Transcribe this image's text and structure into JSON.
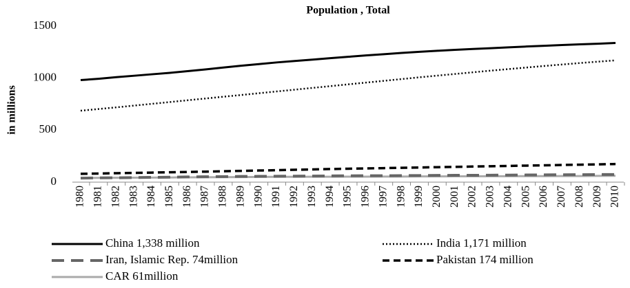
{
  "chart_data": {
    "type": "line",
    "title": "Population , Total",
    "y_label": "in millions",
    "categories": [
      "1980",
      "1981",
      "1982",
      "1983",
      "1984",
      "1985",
      "1986",
      "1987",
      "1988",
      "1989",
      "1990",
      "1991",
      "1992",
      "1993",
      "1994",
      "1995",
      "1996",
      "1997",
      "1998",
      "1999",
      "2000",
      "2001",
      "2002",
      "2003",
      "2004",
      "2005",
      "2006",
      "2007",
      "2008",
      "2009",
      "2010"
    ],
    "series": [
      {
        "name": "China 1,338 million",
        "color": "#000000",
        "style": "solid",
        "values": [
          981,
          994,
          1009,
          1023,
          1037,
          1051,
          1067,
          1084,
          1102,
          1119,
          1135,
          1151,
          1165,
          1178,
          1192,
          1205,
          1218,
          1230,
          1242,
          1253,
          1263,
          1272,
          1280,
          1288,
          1296,
          1304,
          1311,
          1318,
          1325,
          1331,
          1338
        ]
      },
      {
        "name": "India 1,171 million",
        "color": "#000000",
        "style": "dotted",
        "values": [
          687,
          703,
          719,
          736,
          753,
          770,
          787,
          804,
          821,
          838,
          855,
          872,
          889,
          906,
          923,
          940,
          957,
          974,
          991,
          1008,
          1024,
          1040,
          1056,
          1072,
          1087,
          1102,
          1117,
          1131,
          1145,
          1158,
          1171
        ]
      },
      {
        "name": "Iran, Islamic Rep. 74million",
        "color": "#666666",
        "style": "longdash",
        "values": [
          39,
          41,
          42,
          44,
          46,
          48,
          50,
          52,
          53,
          55,
          56,
          57,
          58,
          59,
          60,
          61,
          62,
          62,
          63,
          64,
          65,
          66,
          66,
          67,
          68,
          69,
          70,
          71,
          72,
          73,
          74
        ]
      },
      {
        "name": "Pakistan 174 million",
        "color": "#000000",
        "style": "dashed",
        "values": [
          80,
          83,
          86,
          89,
          92,
          95,
          98,
          101,
          105,
          108,
          112,
          115,
          119,
          122,
          126,
          129,
          132,
          135,
          138,
          141,
          144,
          147,
          150,
          153,
          156,
          159,
          162,
          165,
          168,
          171,
          174
        ]
      },
      {
        "name": "CAR 61million",
        "color": "#aaaaaa",
        "style": "solid",
        "values": [
          40,
          41,
          42,
          43,
          44,
          45,
          46,
          47,
          48,
          49,
          50,
          51,
          51,
          52,
          52,
          53,
          53,
          54,
          54,
          55,
          55,
          56,
          56,
          57,
          57,
          58,
          58,
          59,
          59,
          60,
          61
        ]
      }
    ],
    "ylim": [
      0,
      1500
    ],
    "yticks": [
      0,
      500,
      1000,
      1500
    ],
    "grid": false
  }
}
